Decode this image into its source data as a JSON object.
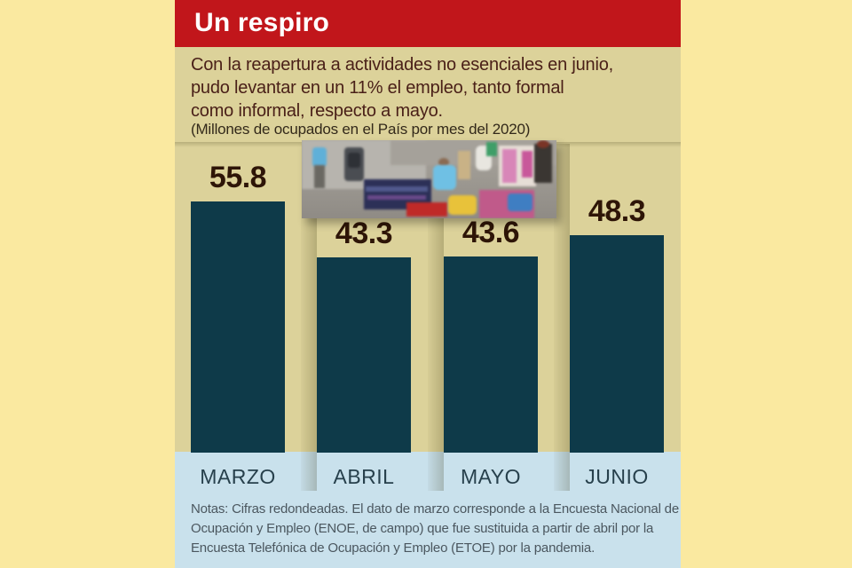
{
  "header": {
    "title": "Un respiro"
  },
  "intro": {
    "text": "Con la reapertura a actividades no esenciales en junio,\npudo levantar en un 11% el empleo, tanto formal\ncomo informal, respecto a mayo.",
    "subtitle": "(Millones de ocupados en el País por mes del 2020)"
  },
  "chart_data": {
    "type": "bar",
    "title": "Un respiro",
    "unit": "Millones de ocupados en el País por mes del 2020",
    "categories": [
      "MARZO",
      "ABRIL",
      "MAYO",
      "JUNIO"
    ],
    "values": [
      55.8,
      43.3,
      43.6,
      48.3
    ],
    "xlabel": "",
    "ylabel": "Millones de ocupados",
    "ylim": [
      0,
      56
    ],
    "grid": false,
    "legend": "none",
    "bar_color": "#0e3a49",
    "value_label_color": "#2e1507"
  },
  "notes": {
    "text": "Notas: Cifras redondeadas. El dato de marzo corresponde a la Encuesta Nacional de\nOcupación y Empleo (ENOE, de campo) que fue sustituida a partir de abril por la\nEncuesta Telefónica de Ocupación y Empleo (ETOE) por la pandemia."
  },
  "colors": {
    "bg_outer": "#fae9a0",
    "bg_panel": "#dcd29a",
    "red": "#c1161b",
    "bar": "#0e3a49",
    "band": "#c9e1ec",
    "intro": "#4a2018",
    "value": "#2e1507",
    "month": "#27404c",
    "notes": "#4b575f"
  }
}
